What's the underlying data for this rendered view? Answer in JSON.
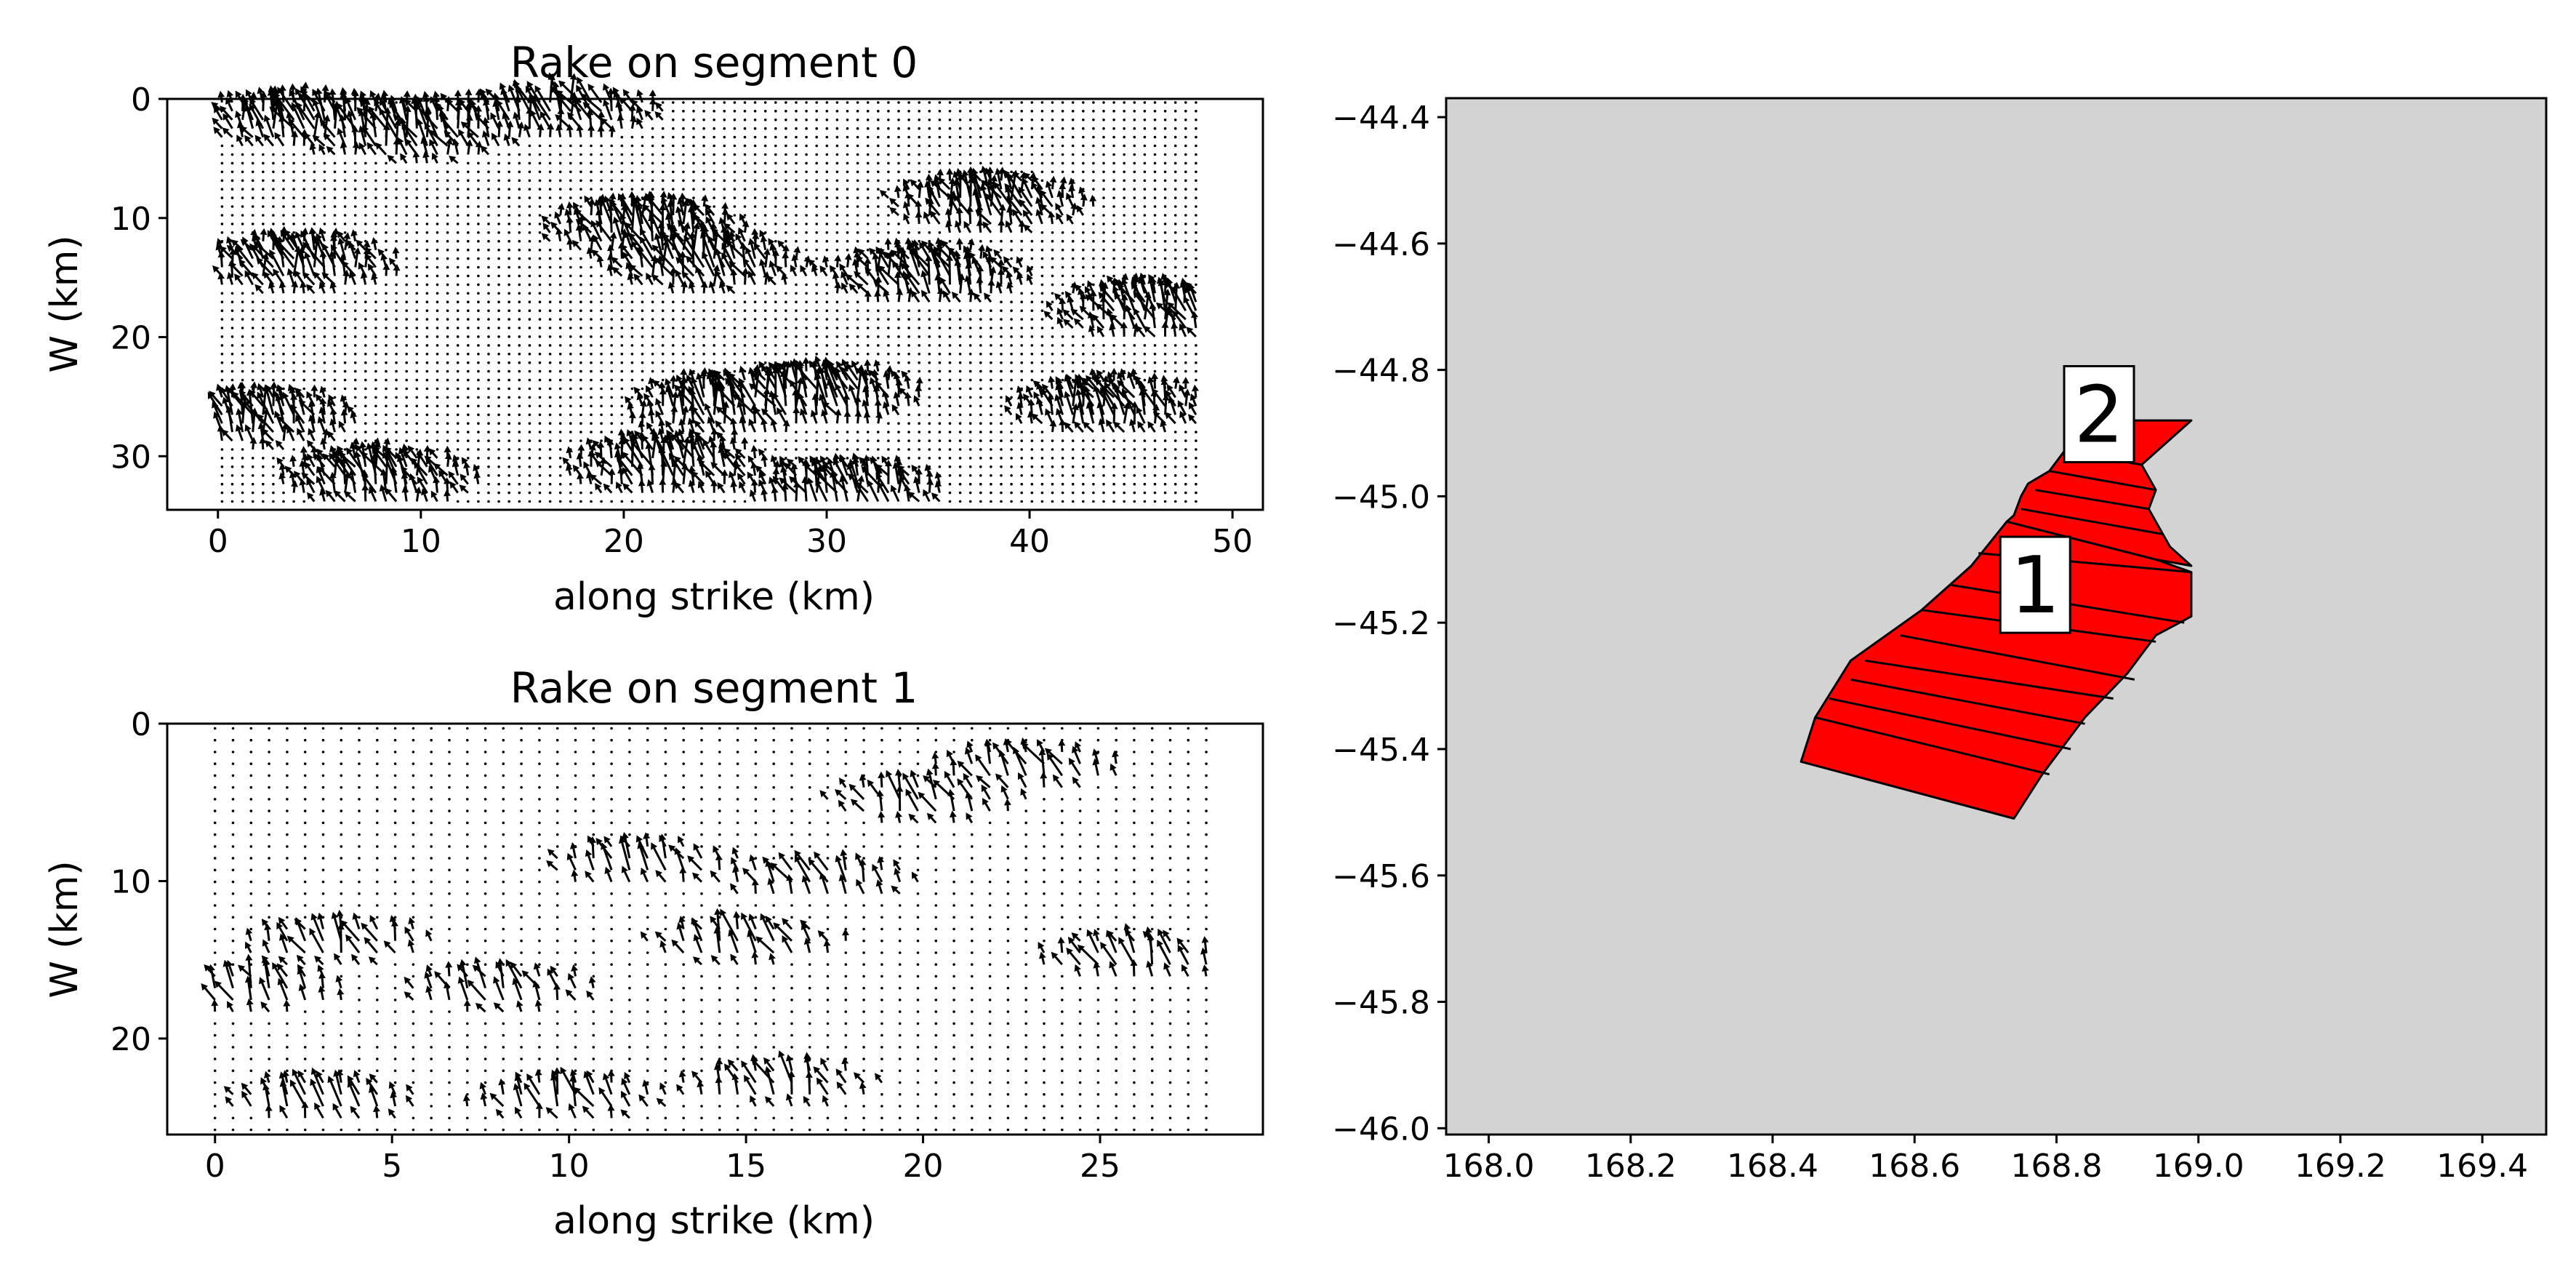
{
  "chart_data": [
    {
      "type": "quiver",
      "title": "Rake on segment 0",
      "xlabel": "along strike (km)",
      "ylabel": "W (km)",
      "xlim": [
        -2.5,
        51.5
      ],
      "ylim": [
        34.5,
        0
      ],
      "y_inverted": true,
      "xticks": [
        0,
        10,
        20,
        30,
        40,
        50
      ],
      "yticks": [
        0,
        10,
        20,
        30
      ],
      "grid": false,
      "arrow_color": "#000000",
      "patch_x_range": [
        0.2,
        48.2
      ],
      "patch_w_range": [
        0.3,
        33.8
      ],
      "grid_cols": 96,
      "grid_rows": 47,
      "high_slip_centers": [
        {
          "x": 4,
          "w": 2
        },
        {
          "x": 10,
          "w": 3
        },
        {
          "x": 17,
          "w": 1
        },
        {
          "x": 21,
          "w": 11
        },
        {
          "x": 24,
          "w": 14
        },
        {
          "x": 4,
          "w": 14
        },
        {
          "x": 38,
          "w": 9
        },
        {
          "x": 2,
          "w": 27
        },
        {
          "x": 25,
          "w": 26
        },
        {
          "x": 30,
          "w": 25
        },
        {
          "x": 22,
          "w": 31
        },
        {
          "x": 8,
          "w": 32
        },
        {
          "x": 44,
          "w": 26
        },
        {
          "x": 31,
          "w": 33
        },
        {
          "x": 46,
          "w": 18
        },
        {
          "x": 35,
          "w": 15
        }
      ],
      "rake_deg_range": [
        80,
        140
      ]
    },
    {
      "type": "quiver",
      "title": "Rake on segment 1",
      "xlabel": "along strike (km)",
      "ylabel": "W (km)",
      "xlim": [
        -1.35,
        29.6
      ],
      "ylim": [
        26.1,
        0
      ],
      "y_inverted": true,
      "xticks": [
        0,
        5,
        10,
        15,
        20,
        25
      ],
      "yticks": [
        0,
        10,
        20
      ],
      "grid": false,
      "arrow_color": "#000000",
      "patch_x_range": [
        0.0,
        28.0
      ],
      "patch_w_range": [
        0.3,
        25.8
      ],
      "grid_cols": 56,
      "grid_rows": 35,
      "high_slip_centers": [
        {
          "x": 1,
          "w": 17
        },
        {
          "x": 3.5,
          "w": 14
        },
        {
          "x": 8,
          "w": 17
        },
        {
          "x": 12,
          "w": 9
        },
        {
          "x": 15,
          "w": 14
        },
        {
          "x": 17,
          "w": 10
        },
        {
          "x": 20,
          "w": 5
        },
        {
          "x": 23,
          "w": 3
        },
        {
          "x": 10,
          "w": 24
        },
        {
          "x": 16,
          "w": 23
        },
        {
          "x": 26,
          "w": 15
        },
        {
          "x": 3,
          "w": 24
        }
      ],
      "rake_deg_range": [
        90,
        140
      ]
    },
    {
      "type": "map",
      "title": "",
      "xlabel": "",
      "ylabel": "",
      "xlim": [
        167.94,
        169.49
      ],
      "ylim": [
        -46.01,
        -44.37
      ],
      "xticks": [
        168.0,
        168.2,
        168.4,
        168.6,
        168.8,
        169.0,
        169.2,
        169.4
      ],
      "yticks": [
        -44.4,
        -44.6,
        -44.8,
        -45.0,
        -45.2,
        -45.4,
        -45.6,
        -45.8,
        -46.0
      ],
      "background_color": "#d3d3d3",
      "fault_fill_color": "#ff0000",
      "fault_edge_color": "#000000",
      "segments": [
        {
          "label": "1",
          "label_lon": 168.77,
          "label_lat": -45.14,
          "outline": [
            [
              168.44,
              -45.42
            ],
            [
              168.74,
              -45.51
            ],
            [
              168.78,
              -45.44
            ],
            [
              168.84,
              -45.35
            ],
            [
              168.9,
              -45.28
            ],
            [
              168.94,
              -45.22
            ],
            [
              168.99,
              -45.19
            ],
            [
              168.99,
              -45.12
            ],
            [
              168.94,
              -45.1
            ],
            [
              168.73,
              -45.04
            ],
            [
              168.68,
              -45.11
            ],
            [
              168.61,
              -45.18
            ],
            [
              168.51,
              -45.26
            ],
            [
              168.46,
              -45.35
            ]
          ],
          "strike_lines": [
            [
              [
                168.46,
                -45.35
              ],
              [
                168.79,
                -45.44
              ]
            ],
            [
              [
                168.48,
                -45.32
              ],
              [
                168.82,
                -45.4
              ]
            ],
            [
              [
                168.51,
                -45.29
              ],
              [
                168.84,
                -45.36
              ]
            ],
            [
              [
                168.53,
                -45.26
              ],
              [
                168.88,
                -45.32
              ]
            ],
            [
              [
                168.58,
                -45.22
              ],
              [
                168.91,
                -45.29
              ]
            ],
            [
              [
                168.61,
                -45.18
              ],
              [
                168.94,
                -45.23
              ]
            ],
            [
              [
                168.65,
                -45.14
              ],
              [
                168.98,
                -45.2
              ]
            ],
            [
              [
                168.69,
                -45.09
              ],
              [
                168.99,
                -45.12
              ]
            ]
          ]
        },
        {
          "label": "2",
          "label_lon": 168.86,
          "label_lat": -44.87,
          "outline": [
            [
              168.73,
              -45.04
            ],
            [
              168.94,
              -45.1
            ],
            [
              168.99,
              -45.11
            ],
            [
              168.96,
              -45.08
            ],
            [
              168.94,
              -45.04
            ],
            [
              168.93,
              -45.02
            ],
            [
              168.94,
              -44.99
            ],
            [
              168.92,
              -44.95
            ],
            [
              168.99,
              -44.88
            ],
            [
              168.84,
              -44.88
            ],
            [
              168.81,
              -44.93
            ],
            [
              168.79,
              -44.96
            ],
            [
              168.76,
              -44.98
            ],
            [
              168.75,
              -45.0
            ],
            [
              168.74,
              -45.03
            ]
          ],
          "strike_lines": [
            [
              [
                168.81,
                -44.93
              ],
              [
                168.92,
                -44.95
              ]
            ],
            [
              [
                168.79,
                -44.96
              ],
              [
                168.94,
                -44.99
              ]
            ],
            [
              [
                168.77,
                -44.99
              ],
              [
                168.93,
                -45.02
              ]
            ],
            [
              [
                168.75,
                -45.02
              ],
              [
                168.95,
                -45.06
              ]
            ]
          ]
        }
      ]
    }
  ]
}
